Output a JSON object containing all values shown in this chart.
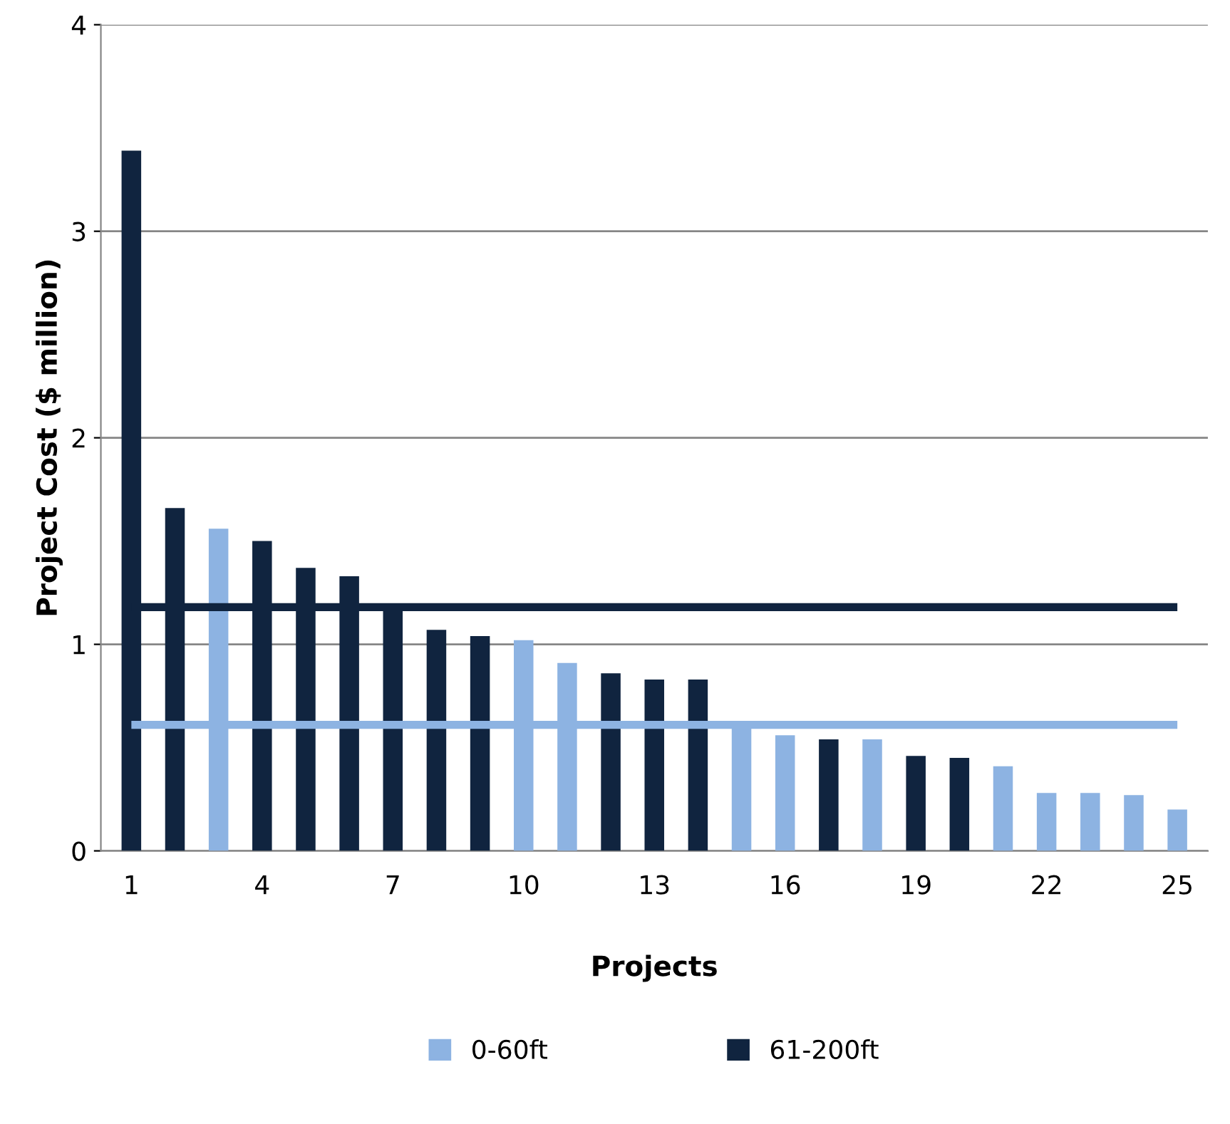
{
  "chart_data": {
    "type": "bar",
    "xlabel": "Projects",
    "ylabel": "Project Cost ($ million)",
    "categories": [
      "1",
      null,
      null,
      "4",
      null,
      null,
      "7",
      null,
      null,
      "10",
      null,
      null,
      "13",
      null,
      null,
      "16",
      null,
      null,
      "19",
      null,
      null,
      "22",
      null,
      null,
      "25"
    ],
    "series": [
      {
        "name": "0-60ft",
        "color": "#8db3e2",
        "values": [
          null,
          null,
          1.56,
          null,
          null,
          null,
          null,
          null,
          null,
          1.02,
          0.91,
          null,
          null,
          null,
          0.61,
          0.56,
          null,
          0.54,
          null,
          null,
          0.41,
          0.28,
          0.28,
          0.27,
          0.2
        ]
      },
      {
        "name": "61-200ft",
        "color": "#10243f",
        "values": [
          3.39,
          1.66,
          null,
          1.5,
          1.37,
          1.33,
          1.17,
          1.07,
          1.04,
          null,
          null,
          0.86,
          0.83,
          0.83,
          null,
          null,
          0.54,
          null,
          0.46,
          0.45,
          null,
          null,
          null,
          null,
          null
        ]
      }
    ],
    "ref_lines": [
      {
        "axis": "y",
        "value": 1.18,
        "color": "#10243f"
      },
      {
        "axis": "y",
        "value": 0.61,
        "color": "#8db3e2"
      }
    ],
    "ylim": [
      0,
      4
    ],
    "yticks": [
      0,
      1,
      2,
      3,
      4
    ],
    "grid": "y",
    "legend": "bottom"
  }
}
